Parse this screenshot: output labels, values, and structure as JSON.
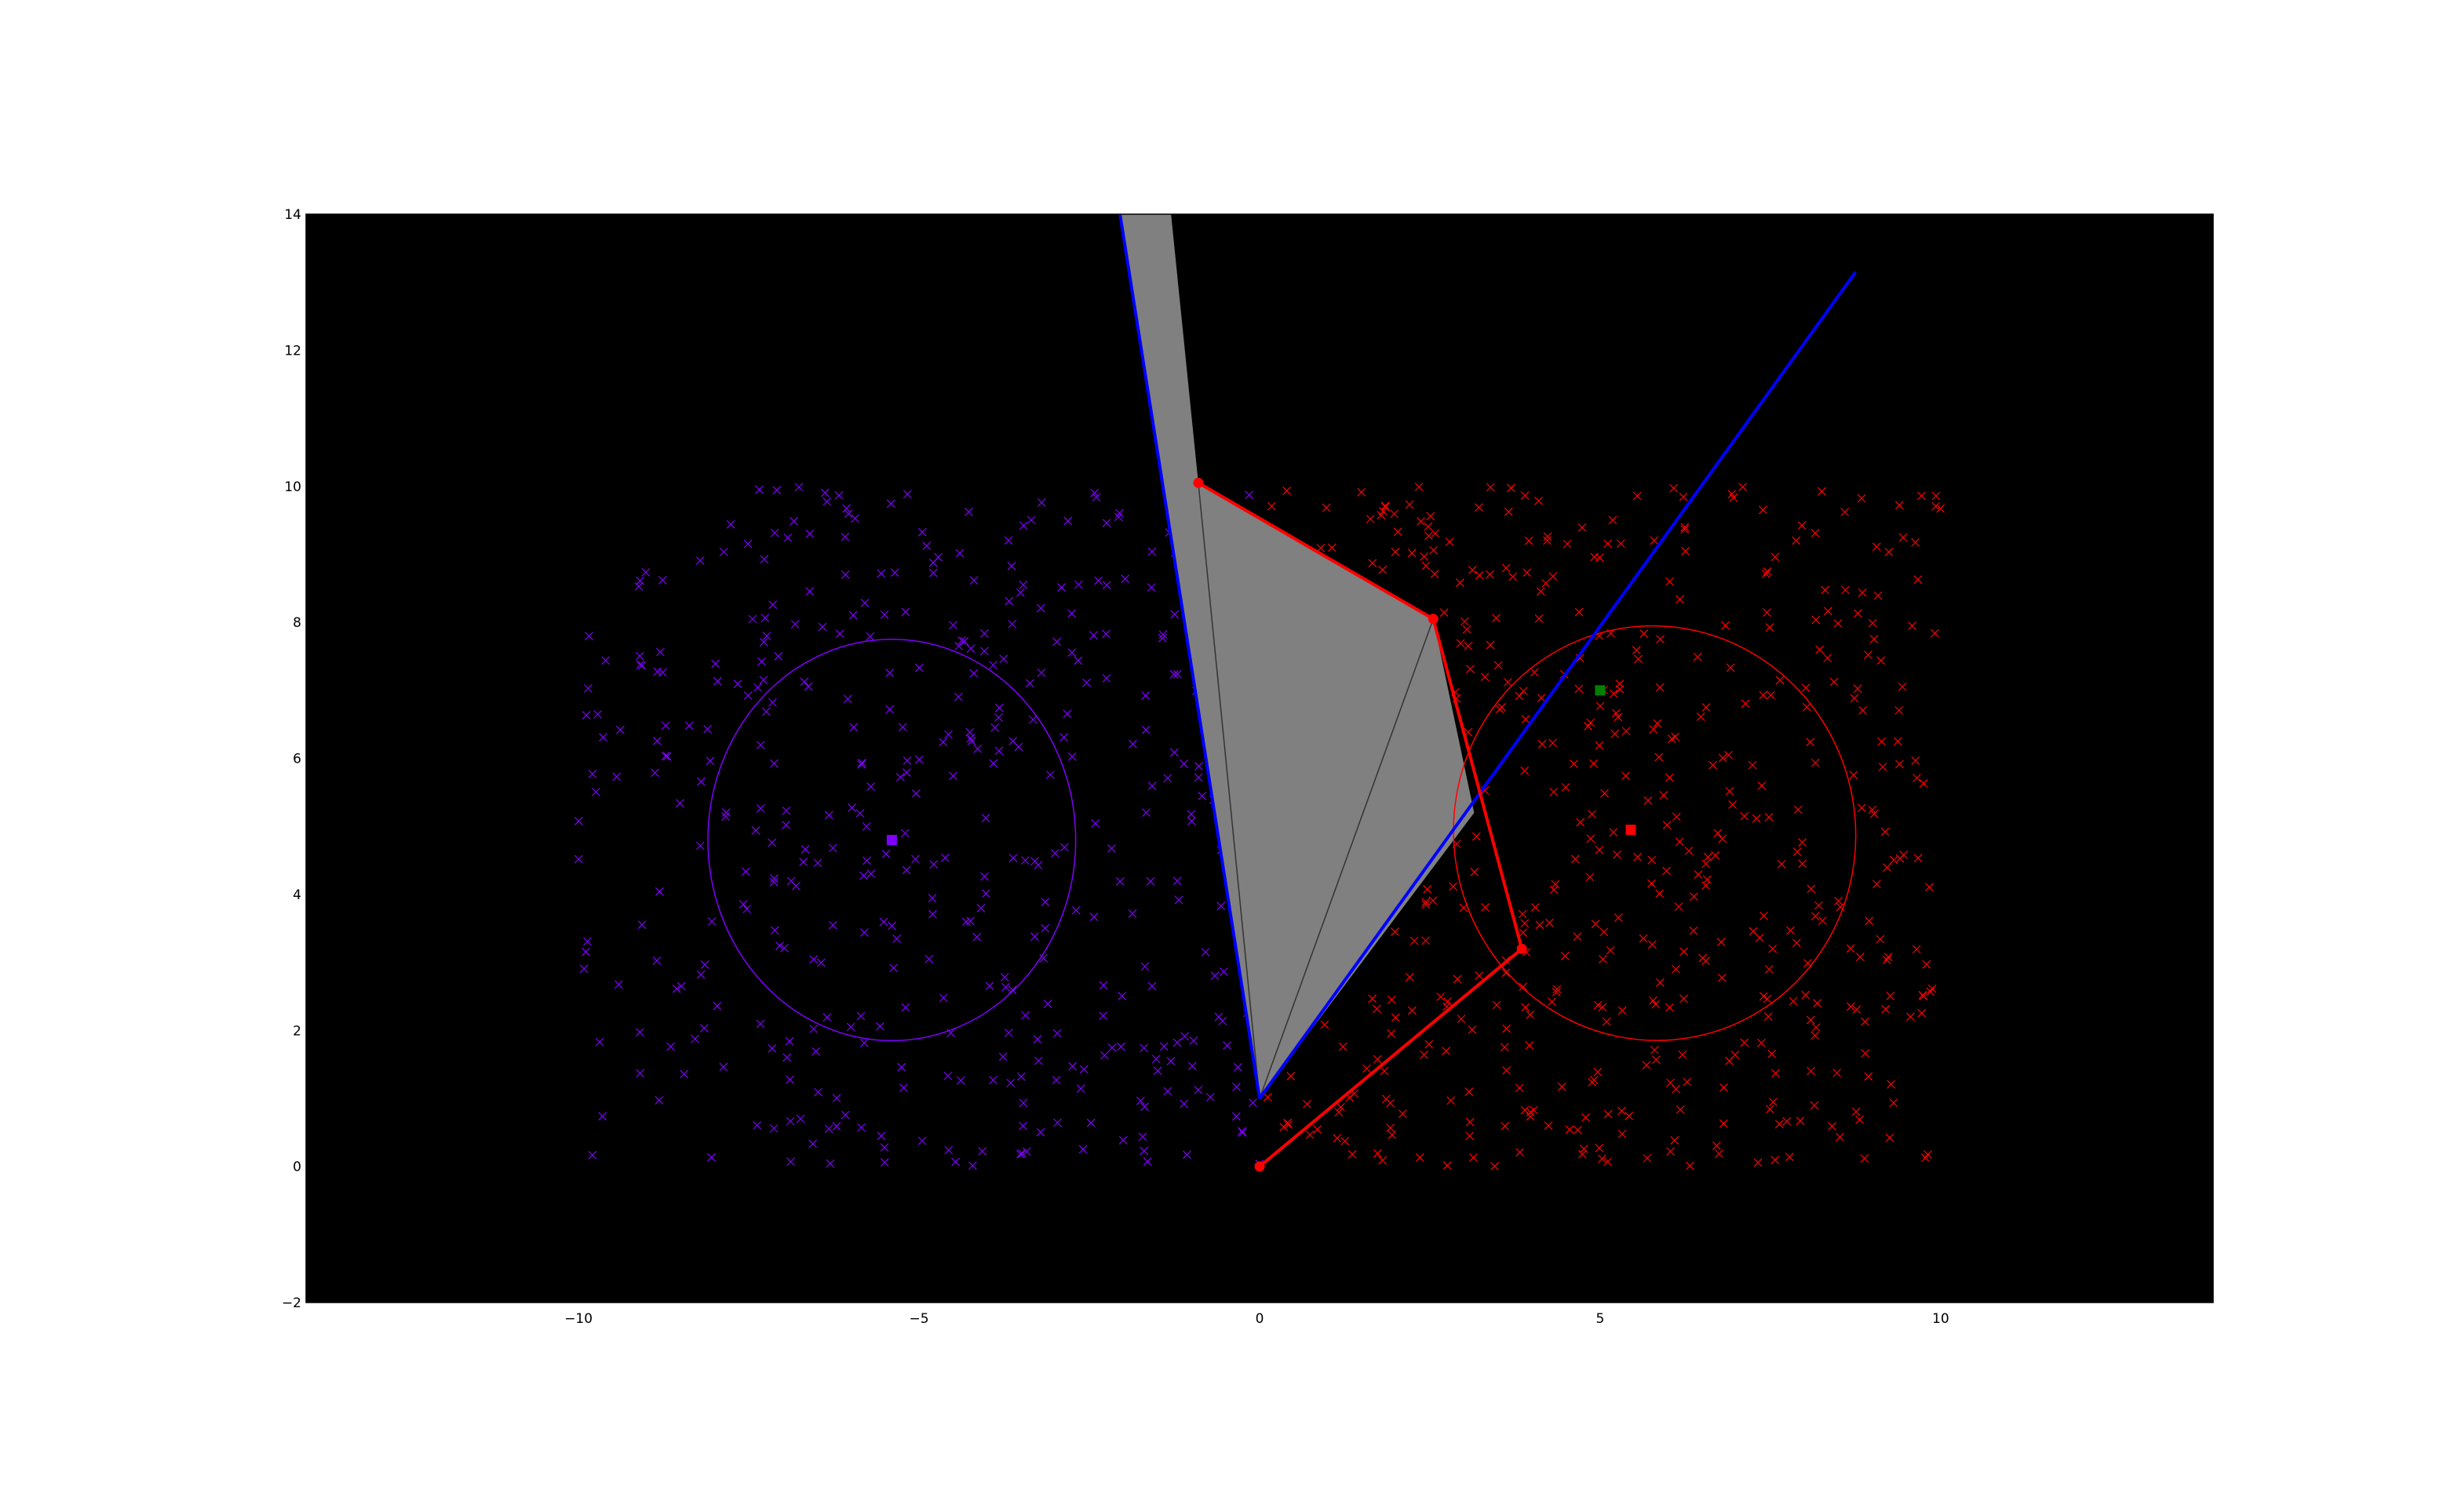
{
  "chart_data": {
    "type": "scatter",
    "title": "",
    "xlabel": "",
    "ylabel": "",
    "xlim": [
      -14,
      14
    ],
    "ylim": [
      -2,
      14
    ],
    "grid": false,
    "legend": "none",
    "background_color": "#000000",
    "xticks": [
      -10,
      -5,
      0,
      5,
      10
    ],
    "xtick_labels": [
      "−10",
      "−5",
      "0",
      "5",
      "10"
    ],
    "yticks": [
      -2,
      0,
      2,
      4,
      6,
      8,
      10,
      12,
      14
    ],
    "ytick_labels": [
      "−2",
      "0",
      "2",
      "4",
      "6",
      "8",
      "10",
      "12",
      "14"
    ],
    "scatter_clusters": [
      {
        "color": "#7f00ff",
        "marker": "x",
        "x_range": [
          -10,
          0
        ],
        "y_range": [
          0,
          10
        ],
        "count": 420
      },
      {
        "color": "#ff0000",
        "marker": "x",
        "x_range": [
          0,
          10
        ],
        "y_range": [
          0,
          10
        ],
        "count": 560
      }
    ],
    "ellipses": [
      {
        "color": "#7f00ff",
        "center": [
          -5.4,
          4.8
        ],
        "rx": 2.7,
        "ry": 2.95
      },
      {
        "color": "#ff0000",
        "center": [
          5.8,
          4.9
        ],
        "rx": 2.95,
        "ry": 3.05,
        "angle": -10
      }
    ],
    "centroids": [
      {
        "color": "#7f00ff",
        "marker": "square",
        "x": -5.4,
        "y": 4.8
      },
      {
        "color": "#ff0000",
        "marker": "square",
        "x": 5.45,
        "y": 4.95
      },
      {
        "color": "#008000",
        "marker": "square",
        "x": 5.0,
        "y": 7.0
      }
    ],
    "polygon": {
      "color": "#808080",
      "vertices": [
        [
          0,
          1
        ],
        [
          -2.05,
          14
        ],
        [
          -1.3,
          14
        ],
        [
          -0.9,
          10.05
        ],
        [
          2.55,
          8.05
        ],
        [
          3.15,
          5.2
        ]
      ]
    },
    "fan_lines": {
      "color": "#333333",
      "origin": [
        0,
        1
      ],
      "ends": [
        [
          -0.9,
          10.05
        ],
        [
          2.55,
          8.05
        ]
      ]
    },
    "red_path": {
      "color": "#ff0000",
      "x": [
        0,
        3.85,
        2.55,
        -0.9
      ],
      "y": [
        0,
        3.2,
        8.05,
        10.05
      ]
    },
    "blue_lines": {
      "color": "#0000ff",
      "segments": [
        [
          [
            0,
            1
          ],
          [
            -2.05,
            14
          ]
        ],
        [
          [
            0,
            1
          ],
          [
            8.75,
            13.15
          ]
        ]
      ]
    }
  }
}
